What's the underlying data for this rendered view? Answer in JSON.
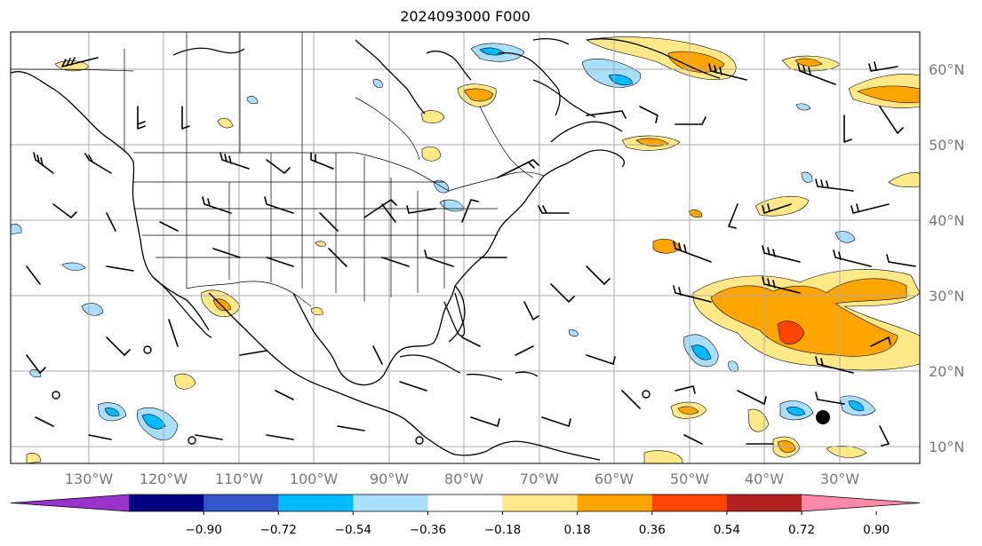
{
  "title": "2024093000 F000",
  "longitude_labels": [
    "130°W",
    "120°W",
    "110°W",
    "100°W",
    "90°W",
    "80°W",
    "70°W",
    "60°W",
    "50°W",
    "40°W",
    "30°W"
  ],
  "latitude_labels": [
    "60°N",
    "50°N",
    "40°N",
    "30°N",
    "20°N",
    "10°N"
  ],
  "colorbar": {
    "ticks": [
      "−0.90",
      "−0.72",
      "−0.54",
      "−0.36",
      "−0.18",
      "0.18",
      "0.36",
      "0.54",
      "0.72",
      "0.90"
    ],
    "colors": [
      "#9933cc",
      "#000080",
      "#3355cc",
      "#00bbff",
      "#aadeff",
      "#ffffff",
      "#ffe888",
      "#ffa500",
      "#ff4400",
      "#b22222",
      "#ff88aa"
    ]
  },
  "field_colors": {
    "light_yellow": "#ffe888",
    "orange": "#ffa500",
    "red_orange": "#ff4400",
    "light_blue": "#aadeff",
    "blue": "#00bbff",
    "land_outline": "#000000",
    "grid": "#aaaaaa"
  }
}
